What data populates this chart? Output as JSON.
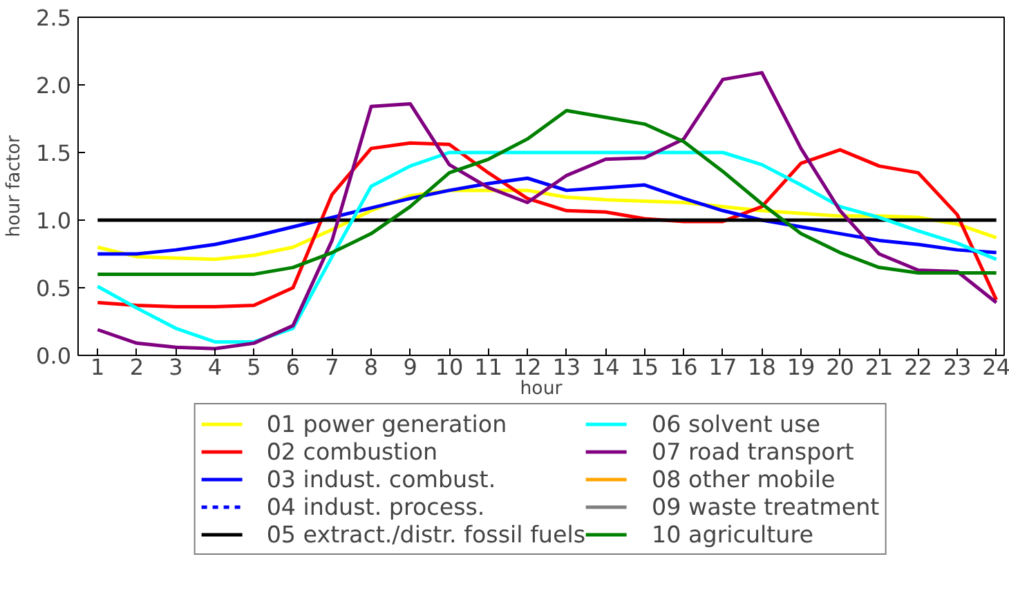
{
  "chart_data": {
    "type": "line",
    "xlabel": "hour",
    "ylabel": "hour factor",
    "x": [
      1,
      2,
      3,
      4,
      5,
      6,
      7,
      8,
      9,
      10,
      11,
      12,
      13,
      14,
      15,
      16,
      17,
      18,
      19,
      20,
      21,
      22,
      23,
      24
    ],
    "xlim": [
      0.5,
      24.2
    ],
    "xticks": [
      1,
      2,
      3,
      4,
      5,
      6,
      7,
      8,
      9,
      10,
      11,
      12,
      13,
      14,
      15,
      16,
      17,
      18,
      19,
      20,
      21,
      22,
      23,
      24
    ],
    "ylim": [
      0,
      2.5
    ],
    "yticks": [
      {
        "value": 0,
        "label": "0.0"
      },
      {
        "value": 0.5,
        "label": "0.5"
      },
      {
        "value": 1,
        "label": "1.0"
      },
      {
        "value": 1.5,
        "label": "1.5"
      },
      {
        "value": 2,
        "label": "2.0"
      },
      {
        "value": 2.5,
        "label": "2.5"
      }
    ],
    "grid": false,
    "legend": "bottom",
    "line_style": "solid",
    "series": [
      {
        "name": "01 power generation",
        "color": "#ffff00",
        "values": [
          0.8,
          0.73,
          0.72,
          0.71,
          0.74,
          0.8,
          0.93,
          1.07,
          1.18,
          1.22,
          1.22,
          1.22,
          1.17,
          1.15,
          1.14,
          1.13,
          1.1,
          1.07,
          1.05,
          1.03,
          1.03,
          1.02,
          0.97,
          0.87
        ]
      },
      {
        "name": "02 combustion",
        "color": "#ff0000",
        "values": [
          0.39,
          0.37,
          0.36,
          0.36,
          0.37,
          0.5,
          1.19,
          1.53,
          1.57,
          1.56,
          1.35,
          1.16,
          1.07,
          1.06,
          1.01,
          0.99,
          0.99,
          1.1,
          1.42,
          1.52,
          1.4,
          1.35,
          1.04,
          0.41
        ]
      },
      {
        "name": "03 indust. combust.",
        "color": "#0000ff",
        "values": [
          0.75,
          0.75,
          0.78,
          0.82,
          0.88,
          0.95,
          1.02,
          1.09,
          1.16,
          1.22,
          1.27,
          1.31,
          1.22,
          1.24,
          1.26,
          1.16,
          1.07,
          1.0,
          0.95,
          0.9,
          0.85,
          0.82,
          0.78,
          0.76
        ]
      },
      {
        "name": "04 indust. process.",
        "color": "#0000ff",
        "line_style": "dashed",
        "values": [
          null,
          null,
          null,
          null,
          null,
          null,
          null,
          null,
          null,
          null,
          null,
          null,
          null,
          null,
          null,
          null,
          null,
          null,
          null,
          null,
          null,
          null,
          null,
          null
        ]
      },
      {
        "name": "05 extract./distr. fossil fuels",
        "color": "#000000",
        "values": [
          1,
          1,
          1,
          1,
          1,
          1,
          1,
          1,
          1,
          1,
          1,
          1,
          1,
          1,
          1,
          1,
          1,
          1,
          1,
          1,
          1,
          1,
          1,
          1
        ]
      },
      {
        "name": "06 solvent use",
        "color": "#00ffff",
        "values": [
          0.51,
          0.35,
          0.2,
          0.1,
          0.1,
          0.2,
          0.73,
          1.25,
          1.4,
          1.5,
          1.5,
          1.5,
          1.5,
          1.5,
          1.5,
          1.5,
          1.5,
          1.41,
          1.26,
          1.1,
          1.02,
          0.92,
          0.83,
          0.71
        ]
      },
      {
        "name": "07 road transport",
        "color": "#800080",
        "values": [
          0.19,
          0.09,
          0.06,
          0.05,
          0.09,
          0.22,
          0.85,
          1.84,
          1.86,
          1.41,
          1.24,
          1.13,
          1.33,
          1.45,
          1.46,
          1.6,
          2.04,
          2.09,
          1.53,
          1.07,
          0.75,
          0.63,
          0.62,
          0.39
        ]
      },
      {
        "name": "08 other mobile",
        "color": "#ffa500",
        "values": [
          null,
          null,
          null,
          null,
          null,
          null,
          null,
          null,
          null,
          null,
          null,
          null,
          null,
          null,
          null,
          null,
          null,
          null,
          null,
          null,
          null,
          null,
          null,
          null
        ]
      },
      {
        "name": "09 waste treatment",
        "color": "#808080",
        "values": [
          null,
          null,
          null,
          null,
          null,
          null,
          null,
          null,
          null,
          null,
          null,
          null,
          null,
          null,
          null,
          null,
          null,
          null,
          null,
          null,
          null,
          null,
          null,
          null
        ]
      },
      {
        "name": "10 agriculture",
        "color": "#008000",
        "values": [
          0.6,
          0.6,
          0.6,
          0.6,
          0.6,
          0.65,
          0.76,
          0.9,
          1.1,
          1.35,
          1.45,
          1.6,
          1.81,
          1.76,
          1.71,
          1.58,
          1.36,
          1.12,
          0.9,
          0.76,
          0.65,
          0.61,
          0.61,
          0.61
        ]
      }
    ]
  }
}
